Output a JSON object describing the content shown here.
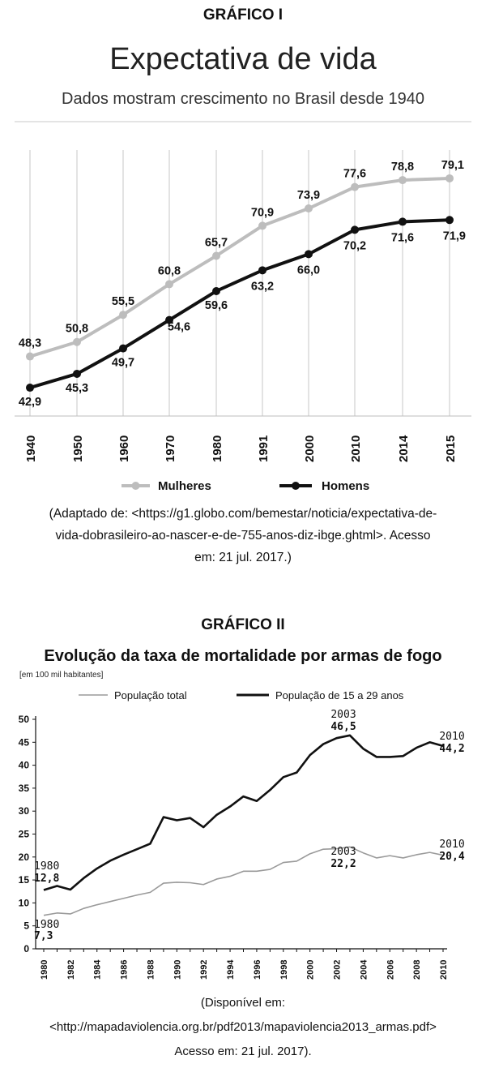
{
  "charts": [
    {
      "caption": "GRÁFICO I",
      "source": "(Adaptado de: <https://g1.globo.com/bemestar/noticia/expectativa-de-vida-dobrasileiro-ao-nascer-e-de-755-anos-diz-ibge.ghtml>. Acesso em: 21 jul. 2017.)",
      "source_lines": [
        "(Adaptado de: <https://g1.globo.com/bemestar/noticia/expectativa-de-",
        "vida-dobrasileiro-ao-nascer-e-de-755-anos-diz-ibge.ghtml>. Acesso",
        "em: 21 jul. 2017.)"
      ]
    },
    {
      "caption": "GRÁFICO II",
      "source_lines": [
        "(Disponível em:",
        "<http://mapadaviolencia.org.br/pdf2013/mapaviolencia2013_armas.pdf>",
        "Acesso em: 21 jul. 2017)."
      ]
    }
  ],
  "chart_data": [
    {
      "type": "line",
      "title": "Expectativa de vida",
      "subtitle": "Dados mostram crescimento no Brasil desde 1940",
      "categories": [
        "1940",
        "1950",
        "1960",
        "1970",
        "1980",
        "1991",
        "2000",
        "2010",
        "2014",
        "2015"
      ],
      "series": [
        {
          "name": "Mulheres",
          "color": "#bdbdbd",
          "values": [
            48.3,
            50.8,
            55.5,
            60.8,
            65.7,
            70.9,
            73.9,
            77.6,
            78.8,
            79.1
          ],
          "labels": [
            "48,3",
            "50,8",
            "55,5",
            "60,8",
            "65,7",
            "70,9",
            "73,9",
            "77,6",
            "78,8",
            "79,1"
          ]
        },
        {
          "name": "Homens",
          "color": "#111111",
          "values": [
            42.9,
            45.3,
            49.7,
            54.6,
            59.6,
            63.2,
            66.0,
            70.2,
            71.6,
            71.9
          ],
          "labels": [
            "42,9",
            "45,3",
            "49,7",
            "54,6",
            "59,6",
            "63,2",
            "66,0",
            "70,2",
            "71,6",
            "71,9"
          ]
        }
      ],
      "ylim": [
        38,
        84
      ],
      "grid": true,
      "legend": "bottom"
    },
    {
      "type": "line",
      "title": "Evolução da taxa de mortalidade por armas de fogo",
      "subtitle": "[em 100 mil habitantes]",
      "x": [
        1980,
        1981,
        1982,
        1983,
        1984,
        1985,
        1986,
        1987,
        1988,
        1989,
        1990,
        1991,
        1992,
        1993,
        1994,
        1995,
        1996,
        1997,
        1998,
        1999,
        2000,
        2001,
        2002,
        2003,
        2004,
        2005,
        2006,
        2007,
        2008,
        2009,
        2010
      ],
      "x_tick_labels": [
        "1980",
        "1982",
        "1984",
        "1986",
        "1988",
        "1990",
        "1992",
        "1994",
        "1996",
        "1998",
        "2000",
        "2002",
        "2004",
        "2006",
        "2008",
        "2010"
      ],
      "y_ticks": [
        "0",
        "5",
        "10",
        "15",
        "20",
        "25",
        "30",
        "35",
        "40",
        "45",
        "50"
      ],
      "ylim": [
        0,
        50
      ],
      "series": [
        {
          "name": "População total",
          "color": "#9a9a9a",
          "values": [
            7.3,
            7.8,
            7.6,
            8.8,
            9.6,
            10.3,
            11.0,
            11.7,
            12.3,
            14.3,
            14.5,
            14.4,
            14.0,
            15.2,
            15.8,
            16.9,
            16.9,
            17.3,
            18.8,
            19.1,
            20.7,
            21.7,
            21.8,
            22.2,
            20.9,
            19.8,
            20.3,
            19.8,
            20.5,
            21.0,
            20.4
          ]
        },
        {
          "name": "População de 15 a 29 anos",
          "color": "#111111",
          "values": [
            12.8,
            13.7,
            12.9,
            15.4,
            17.5,
            19.2,
            20.5,
            21.7,
            22.9,
            28.7,
            28.0,
            28.5,
            26.5,
            29.2,
            31.0,
            33.2,
            32.2,
            34.6,
            37.4,
            38.4,
            42.2,
            44.6,
            45.9,
            46.5,
            43.6,
            41.8,
            41.8,
            42.0,
            43.8,
            45.0,
            44.2
          ]
        }
      ],
      "annotations": [
        {
          "year": "1980",
          "value": "12,8"
        },
        {
          "year": "1980",
          "value": "7,3"
        },
        {
          "year": "2003",
          "value": "46,5"
        },
        {
          "year": "2003",
          "value": "22,2"
        },
        {
          "year": "2010",
          "value": "44,2"
        },
        {
          "year": "2010",
          "value": "20,4"
        }
      ],
      "grid": false,
      "legend": "top"
    }
  ]
}
